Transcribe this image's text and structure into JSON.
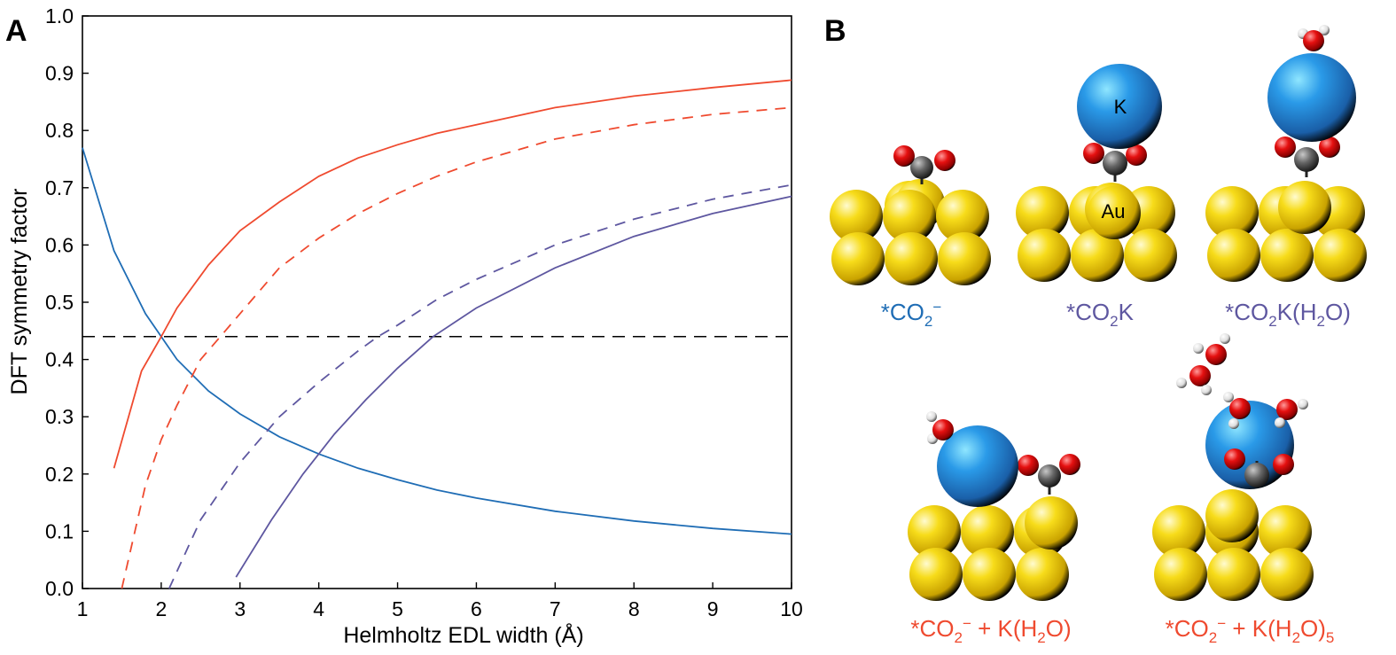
{
  "panel_a_label": "A",
  "panel_b_label": "B",
  "chart_data": {
    "type": "line",
    "title": "",
    "xlabel": "Helmholtz EDL width (Å)",
    "ylabel": "DFT symmetry factor",
    "xlim": [
      1,
      10
    ],
    "ylim": [
      0.0,
      1.0
    ],
    "xticks": [
      1,
      2,
      3,
      4,
      5,
      6,
      7,
      8,
      9,
      10
    ],
    "xtick_labels": [
      "1",
      "2",
      "3",
      "4",
      "5",
      "6",
      "7",
      "8",
      "9",
      "10"
    ],
    "yticks": [
      0.0,
      0.1,
      0.2,
      0.3,
      0.4,
      0.5,
      0.6,
      0.7,
      0.8,
      0.9,
      1.0
    ],
    "ytick_labels": [
      "0.0",
      "0.1",
      "0.2",
      "0.3",
      "0.4",
      "0.5",
      "0.6",
      "0.7",
      "0.8",
      "0.9",
      "1.0"
    ],
    "grid": false,
    "reference_line": {
      "y": 0.44,
      "style": "dashed",
      "color": "#000000"
    },
    "series": [
      {
        "color": "#1f6db5",
        "style": "solid",
        "x": [
          1.0,
          1.4,
          1.8,
          2.0,
          2.2,
          2.6,
          3.0,
          3.5,
          4.0,
          4.5,
          5.0,
          5.5,
          6.0,
          7.0,
          8.0,
          9.0,
          10.0
        ],
        "y": [
          0.77,
          0.59,
          0.48,
          0.44,
          0.4,
          0.345,
          0.305,
          0.265,
          0.235,
          0.21,
          0.19,
          0.172,
          0.158,
          0.135,
          0.118,
          0.105,
          0.095
        ]
      },
      {
        "color": "#ef4a2f",
        "style": "solid",
        "x": [
          1.4,
          1.75,
          2.0,
          2.2,
          2.6,
          3.0,
          3.5,
          4.0,
          4.5,
          5.0,
          5.5,
          6.0,
          7.0,
          8.0,
          9.0,
          10.0
        ],
        "y": [
          0.21,
          0.38,
          0.44,
          0.49,
          0.565,
          0.625,
          0.675,
          0.72,
          0.752,
          0.775,
          0.795,
          0.81,
          0.84,
          0.86,
          0.875,
          0.888
        ]
      },
      {
        "color": "#ef4a2f",
        "style": "dashed",
        "x": [
          1.5,
          1.8,
          2.0,
          2.2,
          2.5,
          2.75,
          3.0,
          3.5,
          4.0,
          4.5,
          5.0,
          5.5,
          6.0,
          7.0,
          8.0,
          9.0,
          10.0
        ],
        "y": [
          0.0,
          0.18,
          0.26,
          0.32,
          0.4,
          0.44,
          0.48,
          0.56,
          0.612,
          0.655,
          0.69,
          0.72,
          0.745,
          0.785,
          0.81,
          0.828,
          0.84
        ]
      },
      {
        "color": "#5e57a0",
        "style": "dashed",
        "x": [
          2.1,
          2.5,
          3.0,
          3.5,
          4.0,
          4.5,
          4.75,
          5.0,
          5.5,
          6.0,
          7.0,
          8.0,
          9.0,
          10.0
        ],
        "y": [
          0.0,
          0.12,
          0.22,
          0.3,
          0.36,
          0.415,
          0.44,
          0.46,
          0.505,
          0.54,
          0.6,
          0.645,
          0.68,
          0.705
        ]
      },
      {
        "color": "#5e57a0",
        "style": "solid",
        "x": [
          2.95,
          3.4,
          3.8,
          4.2,
          4.6,
          5.0,
          5.45,
          6.0,
          7.0,
          8.0,
          9.0,
          10.0
        ],
        "y": [
          0.02,
          0.12,
          0.2,
          0.27,
          0.33,
          0.385,
          0.44,
          0.49,
          0.56,
          0.615,
          0.655,
          0.685
        ]
      }
    ]
  },
  "panel_b": {
    "atom_labels": {
      "k": "K",
      "au": "Au"
    },
    "labels": [
      {
        "pre": "*CO",
        "sub": "2",
        "sup": "−",
        "post": "",
        "color": "#1f6db5"
      },
      {
        "pre": "*CO",
        "sub": "2",
        "sup": "",
        "post": "K",
        "color": "#5e57a0"
      },
      {
        "pre": "*CO",
        "sub": "2",
        "sup": "",
        "post": "K(H",
        "sub2": "2",
        "post2": "O)",
        "color": "#5e57a0"
      },
      {
        "pre": "*CO",
        "sub": "2",
        "sup": "−",
        "post": " + K(H",
        "sub2": "2",
        "post2": "O)",
        "color": "#ef4a2f"
      },
      {
        "pre": "*CO",
        "sub": "2",
        "sup": "−",
        "post": " + K(H",
        "sub2": "2",
        "post2": "O)",
        "sub3": "5",
        "color": "#ef4a2f"
      }
    ]
  },
  "colors": {
    "gold": "#f5d000",
    "potassium": "#2a8fe0",
    "oxygen": "#e01010",
    "carbon": "#555555",
    "hydrogen": "#f2f2f2"
  }
}
